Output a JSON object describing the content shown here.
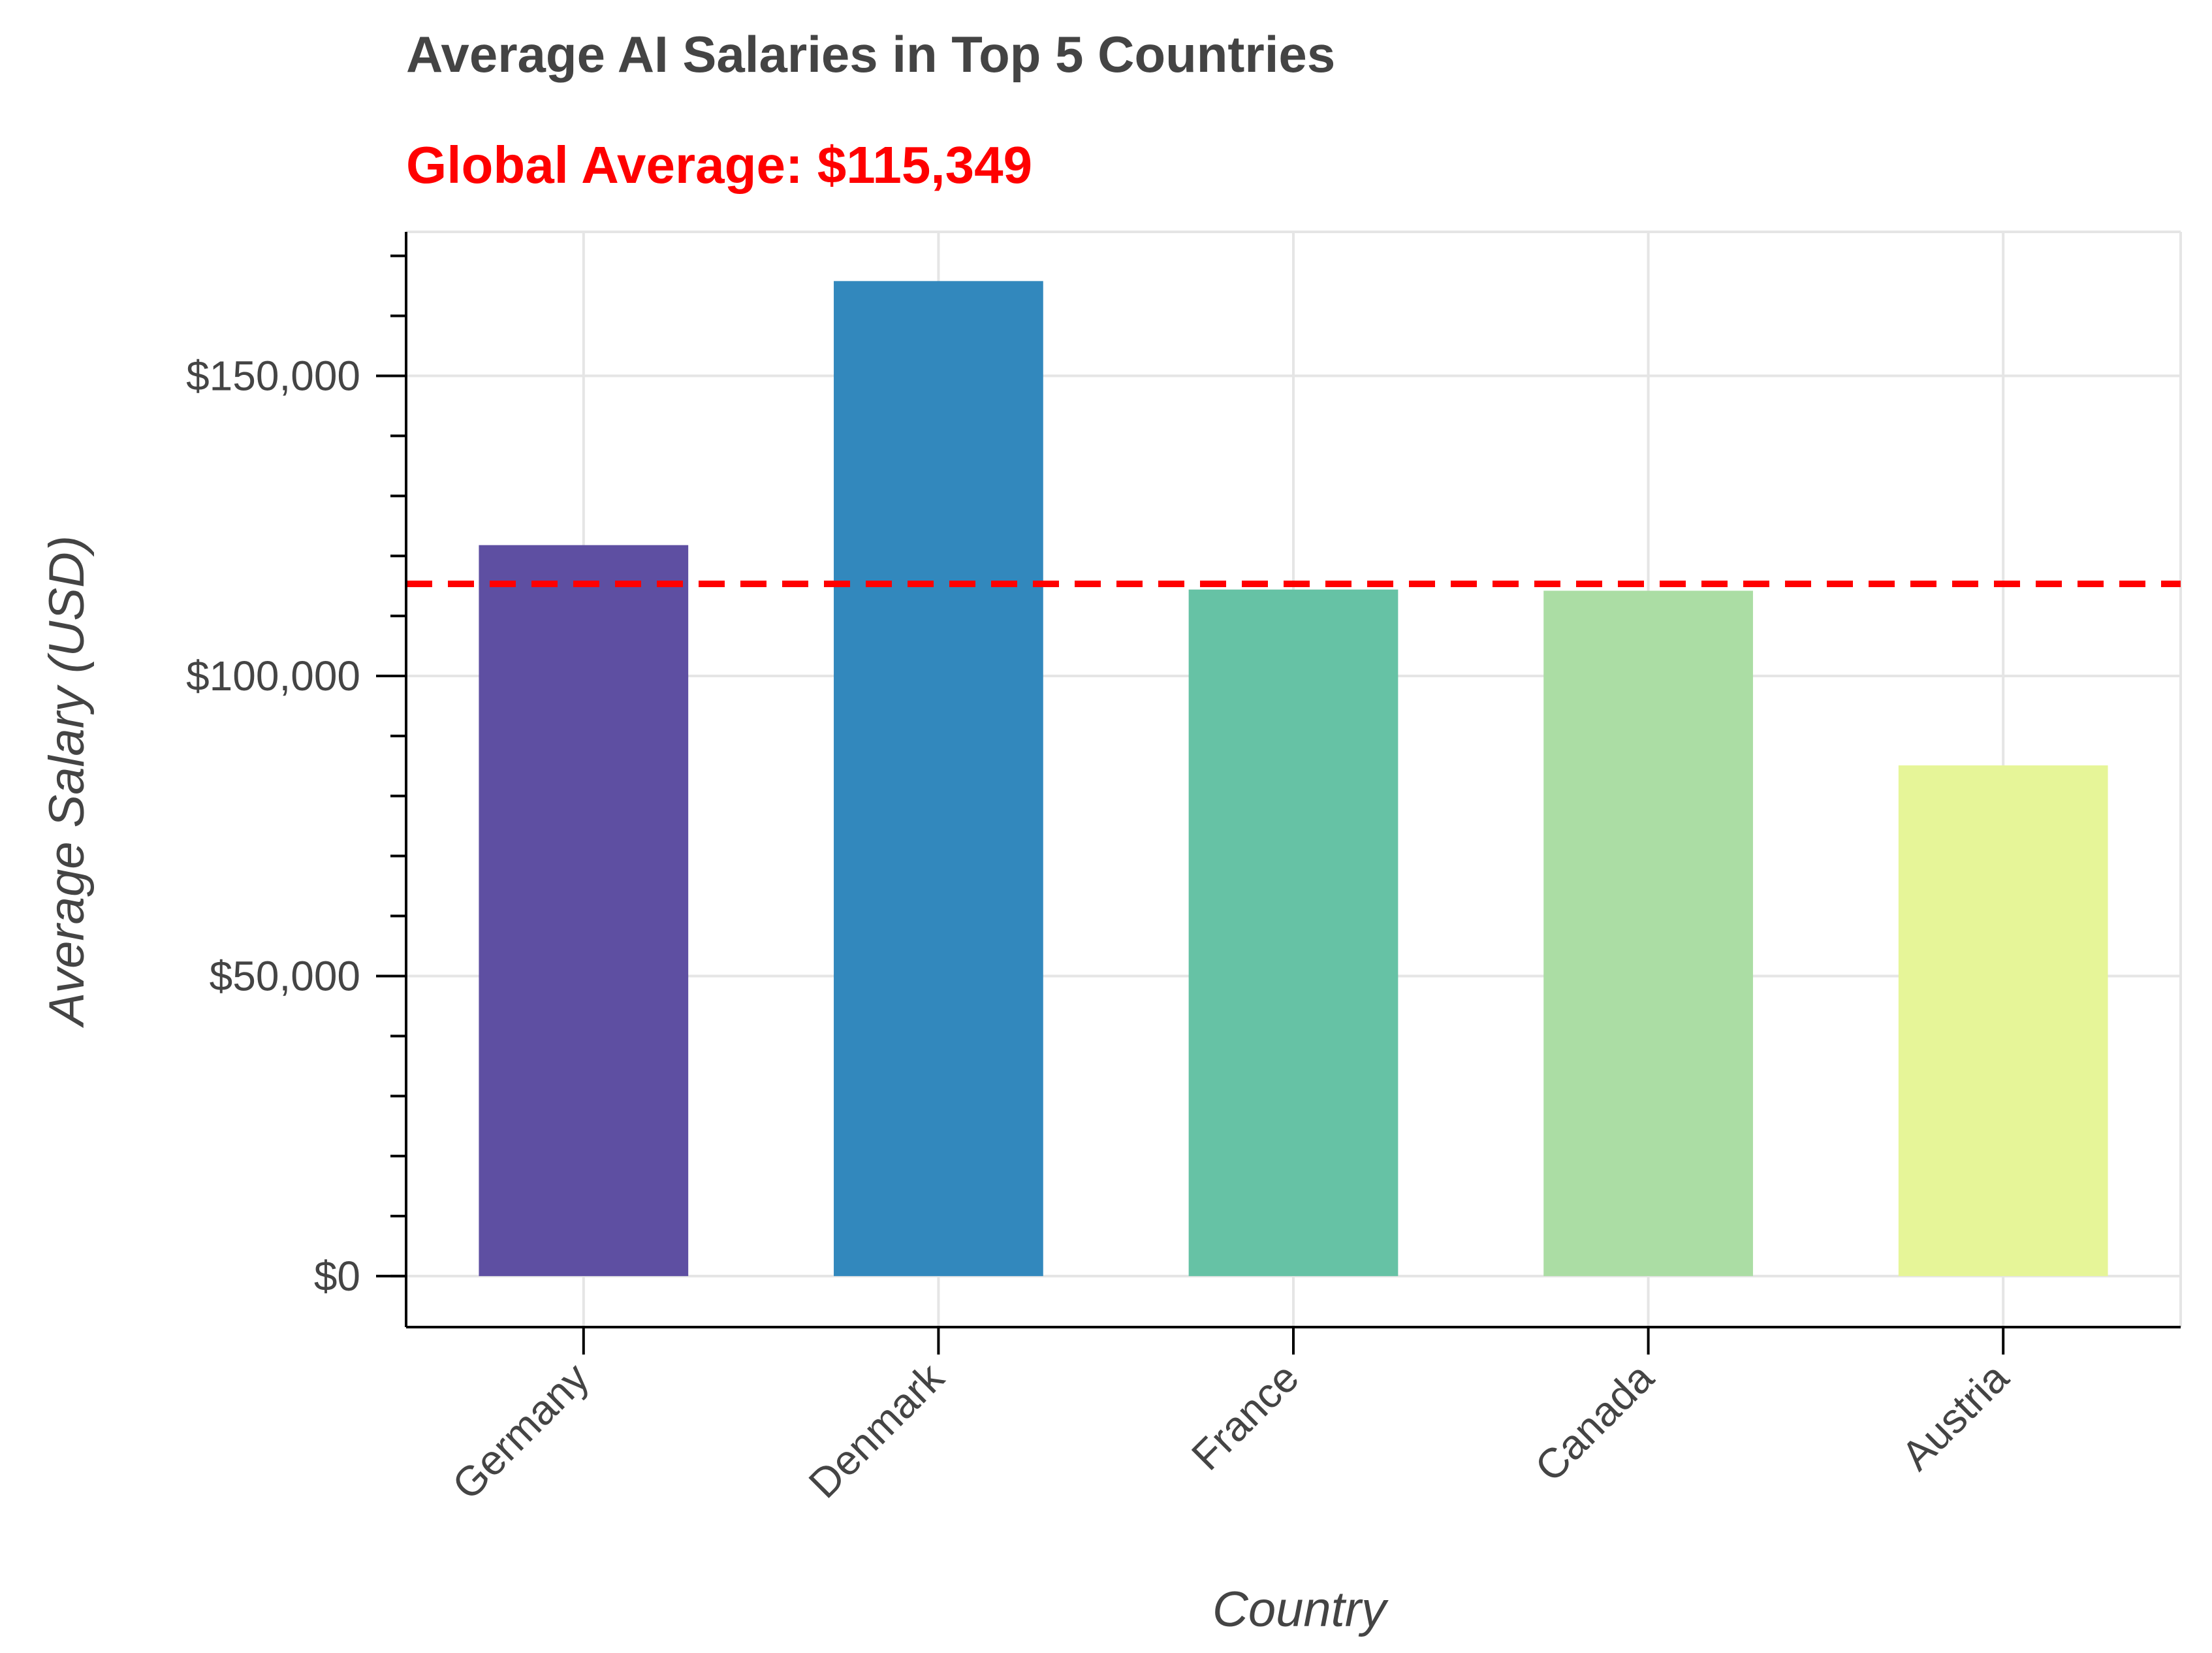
{
  "chart_data": {
    "type": "bar",
    "title": "Average AI Salaries in Top 5 Countries",
    "subtitle": "Global Average: $115,349",
    "xlabel": "Country",
    "ylabel": "Average Salary (USD)",
    "categories": [
      "Germany",
      "Denmark",
      "France",
      "Canada",
      "Austria"
    ],
    "values": [
      121800,
      165800,
      114400,
      114200,
      85100
    ],
    "bar_colors": [
      "#5e4fa2",
      "#3288bd",
      "#66c2a5",
      "#abdda4",
      "#e6f598"
    ],
    "reference_line": {
      "value": 115349,
      "color": "#ff0000",
      "style": "dashed"
    },
    "subtitle_color": "#ff0000",
    "ylim": [
      -8500,
      174000
    ],
    "yticks": [
      0,
      50000,
      100000,
      150000
    ],
    "ytick_labels": [
      "$0",
      "$50,000",
      "$100,000",
      "$150,000"
    ],
    "minor_ytick_step": 10000,
    "grid": true
  }
}
